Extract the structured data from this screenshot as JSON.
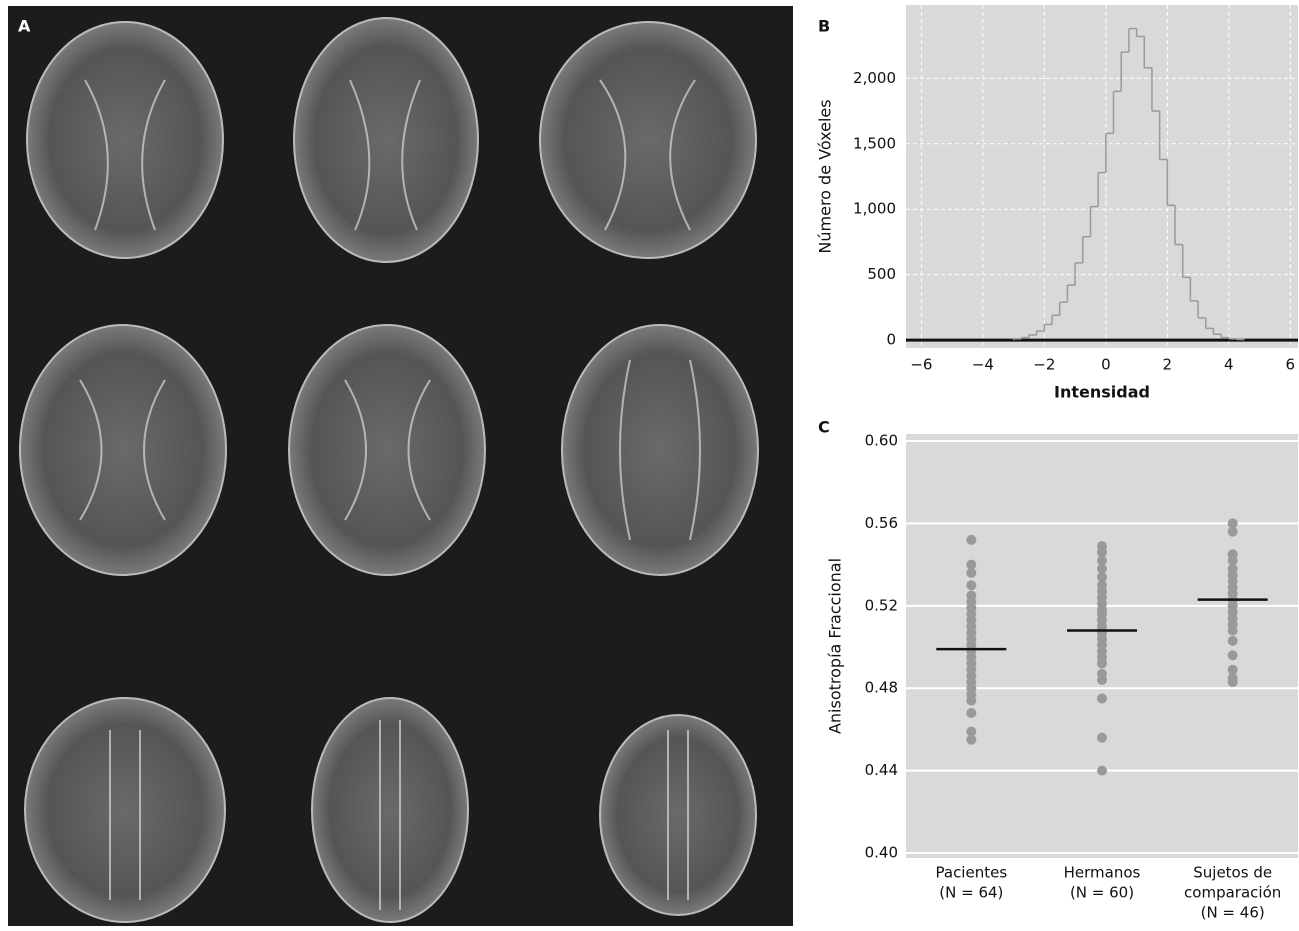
{
  "image_panel": {
    "label": "A"
  },
  "chart_data": [
    {
      "type": "histogram",
      "label": "B",
      "xlabel": "Intensidad",
      "ylabel": "Número de Vóxeles",
      "bins": [
        -3,
        -2.75,
        -2.5,
        -2.25,
        -2,
        -1.75,
        -1.5,
        -1.25,
        -1,
        -0.75,
        -0.5,
        -0.25,
        0,
        0.25,
        0.5,
        0.75,
        1,
        1.25,
        1.5,
        1.75,
        2,
        2.25,
        2.5,
        2.75,
        3,
        3.25,
        3.5,
        3.75,
        4,
        4.25,
        4.5
      ],
      "values": [
        10,
        20,
        40,
        70,
        120,
        190,
        290,
        420,
        590,
        790,
        1020,
        1280,
        1580,
        1900,
        2200,
        2380,
        2320,
        2080,
        1750,
        1380,
        1030,
        730,
        480,
        300,
        170,
        90,
        45,
        20,
        10,
        5
      ],
      "color": "#9a9a9a",
      "xlim": [
        -6.5,
        6.25
      ],
      "ylim": [
        -60,
        2560
      ],
      "xticks": [
        {
          "value": -6,
          "label": "−6"
        },
        {
          "value": -4,
          "label": "−4"
        },
        {
          "value": -2,
          "label": "−2"
        },
        0,
        2,
        4,
        6
      ],
      "yticks": [
        0,
        500,
        {
          "value": 1000,
          "label": "1,000"
        },
        {
          "value": 1500,
          "label": "1,500"
        },
        {
          "value": 2000,
          "label": "2,000"
        }
      ],
      "grid": "dashed"
    },
    {
      "type": "strip",
      "label": "C",
      "ylabel": "Anisotropía Fraccional",
      "categories": [
        [
          "Pacientes",
          "(N = 64)"
        ],
        [
          "Hermanos",
          "(N = 60)"
        ],
        [
          "Sujetos de",
          "comparación",
          "(N = 46)"
        ]
      ],
      "values": [
        [
          0.552,
          0.54,
          0.536,
          0.53,
          0.525,
          0.522,
          0.519,
          0.516,
          0.513,
          0.51,
          0.507,
          0.504,
          0.501,
          0.498,
          0.495,
          0.492,
          0.489,
          0.486,
          0.483,
          0.48,
          0.477,
          0.474,
          0.468,
          0.459,
          0.455
        ],
        [
          0.549,
          0.546,
          0.542,
          0.538,
          0.534,
          0.53,
          0.527,
          0.524,
          0.521,
          0.518,
          0.516,
          0.513,
          0.51,
          0.507,
          0.504,
          0.501,
          0.498,
          0.495,
          0.492,
          0.487,
          0.484,
          0.475,
          0.456,
          0.44
        ],
        [
          0.56,
          0.556,
          0.545,
          0.542,
          0.538,
          0.535,
          0.532,
          0.529,
          0.526,
          0.523,
          0.52,
          0.517,
          0.514,
          0.511,
          0.508,
          0.503,
          0.496,
          0.489,
          0.485,
          0.483
        ]
      ],
      "means": [
        0.499,
        0.508,
        0.523
      ],
      "color": "#999999",
      "ylim": [
        0.3976,
        0.6034
      ],
      "yticks": [
        {
          "value": 0.4,
          "label": "0.40"
        },
        0.44,
        0.48,
        0.52,
        0.56,
        {
          "value": 0.6,
          "label": "0.60"
        }
      ],
      "grid": "solid"
    }
  ]
}
